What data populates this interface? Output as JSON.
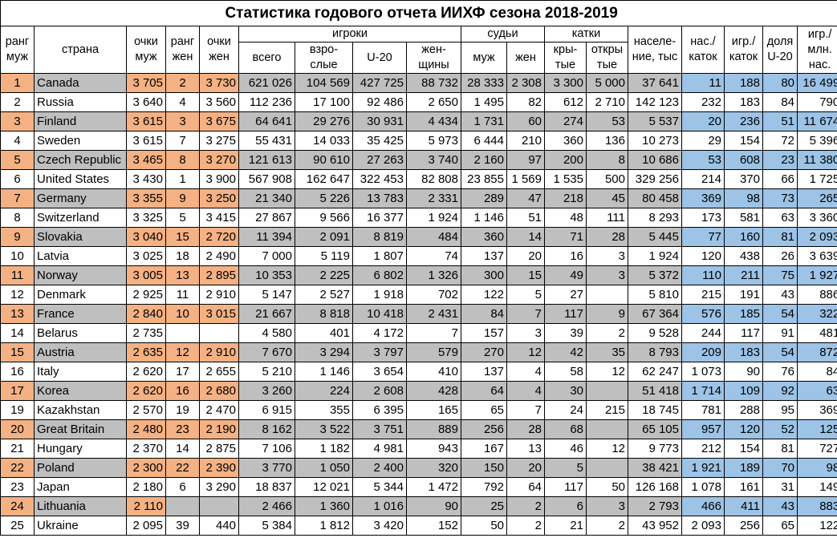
{
  "title": "Статистика годового отчета ИИХФ сезона 2018-2019",
  "header": {
    "rank_m": "ранг муж",
    "country": "страна",
    "points_m": "очки муж",
    "rank_w": "ранг жен",
    "points_w": "очки жен",
    "players": "игроки",
    "total": "всего",
    "adults": "взро- слые",
    "u20": "U-20",
    "women": "жен- щины",
    "referees": "судьи",
    "ref_m": "муж",
    "ref_w": "жен",
    "rinks": "катки",
    "indoor": "кры- тые",
    "outdoor": "откры тые",
    "population": "населе- ние, тыс",
    "pop_per_rink": "нас./ каток",
    "players_per_rink": "игр./ каток",
    "u20_share": "доля U-20",
    "players_per_mln": "игр./ млн. нас."
  },
  "colors": {
    "grey": "#bfbfbf",
    "orange": "#f4b183",
    "blue": "#9dc3e6"
  },
  "rows": [
    [
      "1",
      "Canada",
      "3 705",
      "2",
      "3 730",
      "621 026",
      "104 569",
      "427 725",
      "88 732",
      "28 333",
      "2 308",
      "3 300",
      "5 000",
      "37 641",
      "11",
      "188",
      "80",
      "16 499"
    ],
    [
      "2",
      "Russia",
      "3 640",
      "4",
      "3 560",
      "112 236",
      "17 100",
      "92 486",
      "2 650",
      "1 495",
      "82",
      "612",
      "2 710",
      "142 123",
      "232",
      "183",
      "84",
      "790"
    ],
    [
      "3",
      "Finland",
      "3 615",
      "3",
      "3 675",
      "64 641",
      "29 276",
      "30 931",
      "4 434",
      "1 731",
      "60",
      "274",
      "53",
      "5 537",
      "20",
      "236",
      "51",
      "11 674"
    ],
    [
      "4",
      "Sweden",
      "3 615",
      "7",
      "3 275",
      "55 431",
      "14 033",
      "35 425",
      "5 973",
      "6 444",
      "210",
      "360",
      "136",
      "10 273",
      "29",
      "154",
      "72",
      "5 396"
    ],
    [
      "5",
      "Czech Republic",
      "3 465",
      "8",
      "3 270",
      "121 613",
      "90 610",
      "27 263",
      "3 740",
      "2 160",
      "97",
      "200",
      "8",
      "10 686",
      "53",
      "608",
      "23",
      "11 380"
    ],
    [
      "6",
      "United States",
      "3 430",
      "1",
      "3 900",
      "567 908",
      "162 647",
      "322 453",
      "82 808",
      "23 855",
      "1 569",
      "1 535",
      "500",
      "329 256",
      "214",
      "370",
      "66",
      "1 725"
    ],
    [
      "7",
      "Germany",
      "3 355",
      "9",
      "3 250",
      "21 340",
      "5 226",
      "13 783",
      "2 331",
      "289",
      "47",
      "218",
      "45",
      "80 458",
      "369",
      "98",
      "73",
      "265"
    ],
    [
      "8",
      "Switzerland",
      "3 325",
      "5",
      "3 415",
      "27 867",
      "9 566",
      "16 377",
      "1 924",
      "1 146",
      "51",
      "48",
      "111",
      "8 293",
      "173",
      "581",
      "63",
      "3 360"
    ],
    [
      "9",
      "Slovakia",
      "3 040",
      "15",
      "2 720",
      "11 394",
      "2 091",
      "8 819",
      "484",
      "360",
      "14",
      "71",
      "28",
      "5 445",
      "77",
      "160",
      "81",
      "2 093"
    ],
    [
      "10",
      "Latvia",
      "3 025",
      "18",
      "2 490",
      "7 000",
      "5 119",
      "1 807",
      "74",
      "137",
      "20",
      "16",
      "3",
      "1 924",
      "120",
      "438",
      "26",
      "3 639"
    ],
    [
      "11",
      "Norway",
      "3 005",
      "13",
      "2 895",
      "10 353",
      "2 225",
      "6 802",
      "1 326",
      "300",
      "15",
      "49",
      "3",
      "5 372",
      "110",
      "211",
      "75",
      "1 927"
    ],
    [
      "12",
      "Denmark",
      "2 925",
      "11",
      "2 910",
      "5 147",
      "2 527",
      "1 918",
      "702",
      "122",
      "5",
      "27",
      "",
      "5 810",
      "215",
      "191",
      "43",
      "886"
    ],
    [
      "13",
      "France",
      "2 840",
      "10",
      "3 015",
      "21 667",
      "8 818",
      "10 418",
      "2 431",
      "84",
      "7",
      "117",
      "9",
      "67 364",
      "576",
      "185",
      "54",
      "322"
    ],
    [
      "14",
      "Belarus",
      "2 735",
      "",
      "",
      "4 580",
      "401",
      "4 172",
      "7",
      "157",
      "3",
      "39",
      "2",
      "9 528",
      "244",
      "117",
      "91",
      "481"
    ],
    [
      "15",
      "Austria",
      "2 635",
      "12",
      "2 910",
      "7 670",
      "3 294",
      "3 797",
      "579",
      "270",
      "12",
      "42",
      "35",
      "8 793",
      "209",
      "183",
      "54",
      "872"
    ],
    [
      "16",
      "Italy",
      "2 620",
      "17",
      "2 655",
      "5 210",
      "1 146",
      "3 654",
      "410",
      "137",
      "4",
      "58",
      "12",
      "62 247",
      "1 073",
      "90",
      "76",
      "84"
    ],
    [
      "17",
      "Korea",
      "2 620",
      "16",
      "2 680",
      "3 260",
      "224",
      "2 608",
      "428",
      "64",
      "4",
      "30",
      "",
      "51 418",
      "1 714",
      "109",
      "92",
      "63"
    ],
    [
      "19",
      "Kazakhstan",
      "2 570",
      "19",
      "2 470",
      "6 915",
      "355",
      "6 395",
      "165",
      "65",
      "7",
      "24",
      "215",
      "18 745",
      "781",
      "288",
      "95",
      "369"
    ],
    [
      "20",
      "Great Britain",
      "2 480",
      "23",
      "2 190",
      "8 162",
      "3 522",
      "3 751",
      "889",
      "256",
      "28",
      "68",
      "",
      "65 105",
      "957",
      "120",
      "52",
      "125"
    ],
    [
      "21",
      "Hungary",
      "2 370",
      "14",
      "2 875",
      "7 106",
      "1 182",
      "4 981",
      "943",
      "167",
      "13",
      "46",
      "12",
      "9 773",
      "212",
      "154",
      "81",
      "727"
    ],
    [
      "22",
      "Poland",
      "2 300",
      "22",
      "2 390",
      "3 770",
      "1 050",
      "2 400",
      "320",
      "150",
      "20",
      "5",
      "",
      "38 421",
      "1 921",
      "189",
      "70",
      "98"
    ],
    [
      "23",
      "Japan",
      "2 180",
      "6",
      "3 290",
      "18 837",
      "12 021",
      "5 344",
      "1 472",
      "792",
      "64",
      "117",
      "50",
      "126 168",
      "1 078",
      "161",
      "31",
      "149"
    ],
    [
      "24",
      "Lithuania",
      "2 110",
      "",
      "",
      "2 466",
      "1 360",
      "1 016",
      "90",
      "25",
      "2",
      "6",
      "3",
      "2 793",
      "466",
      "411",
      "43",
      "883"
    ],
    [
      "25",
      "Ukraine",
      "2 095",
      "39",
      "440",
      "5 384",
      "1 812",
      "3 420",
      "152",
      "50",
      "2",
      "21",
      "2",
      "43 952",
      "2 093",
      "256",
      "65",
      "122"
    ]
  ]
}
